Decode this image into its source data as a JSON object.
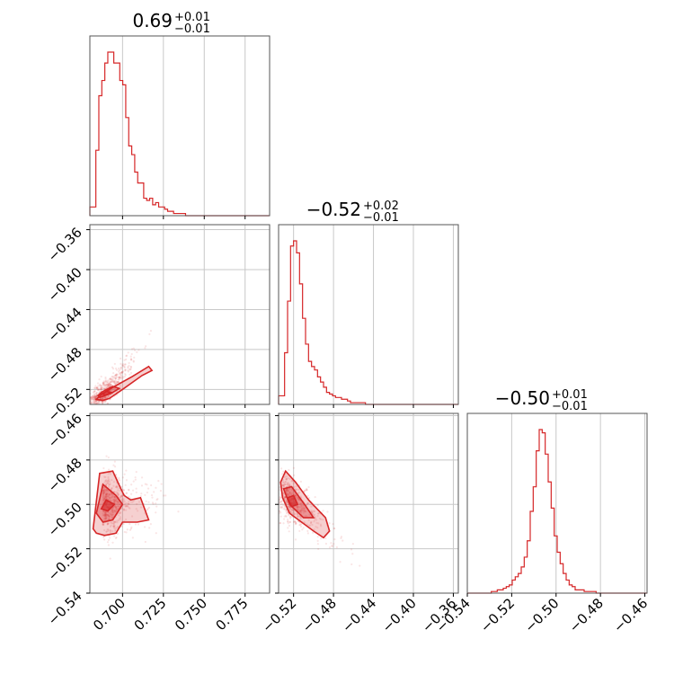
{
  "chart_data": {
    "type": "corner",
    "color": "#d62728",
    "parameters": [
      {
        "title_value": "0.69",
        "title_plus": "+0.01",
        "title_minus": "−0.01",
        "range": [
          0.68,
          0.79
        ],
        "ticks": [
          "0.700",
          "0.725",
          "0.750",
          "0.775"
        ],
        "tick_values": [
          0.7,
          0.725,
          0.75,
          0.775
        ]
      },
      {
        "title_value": "−0.52",
        "title_plus": "+0.02",
        "title_minus": "−0.01",
        "range": [
          -0.535,
          -0.355
        ],
        "ticks": [
          "−0.52",
          "−0.48",
          "−0.44",
          "−0.40",
          "−0.36"
        ],
        "tick_values": [
          -0.52,
          -0.48,
          -0.44,
          -0.4,
          -0.36
        ]
      },
      {
        "title_value": "−0.50",
        "title_plus": "+0.01",
        "title_minus": "−0.01",
        "range": [
          -0.54,
          -0.459
        ],
        "ticks": [
          "−0.54",
          "−0.52",
          "−0.50",
          "−0.48",
          "−0.46"
        ],
        "tick_values": [
          -0.54,
          -0.52,
          -0.5,
          -0.48,
          -0.46
        ]
      }
    ],
    "histograms": [
      {
        "parameter": 0,
        "bin_start": 0.68,
        "bin_width": 0.00183,
        "counts": [
          4,
          4,
          30,
          55,
          62,
          70,
          75,
          75,
          70,
          70,
          62,
          60,
          45,
          32,
          28,
          20,
          15,
          15,
          8,
          7,
          8,
          5,
          6,
          4,
          4,
          3,
          2,
          2,
          1,
          1,
          1,
          1,
          0,
          0,
          0,
          0,
          0,
          0,
          0,
          0,
          0,
          0,
          0,
          0,
          0,
          0,
          0,
          0,
          0,
          0,
          0,
          0,
          0,
          0,
          0,
          0,
          0,
          0,
          0,
          0
        ]
      },
      {
        "parameter": 1,
        "bin_start": -0.535,
        "bin_width": 0.003,
        "counts": [
          5,
          5,
          30,
          60,
          92,
          95,
          88,
          70,
          50,
          35,
          25,
          22,
          20,
          16,
          13,
          10,
          7,
          6,
          5,
          4,
          4,
          3,
          3,
          2,
          1,
          1,
          1,
          1,
          1,
          0,
          0,
          0,
          0,
          0,
          0,
          0,
          0,
          0,
          0,
          0,
          0,
          0,
          0,
          0,
          0,
          0,
          0,
          0,
          0,
          0,
          0,
          0,
          0,
          0,
          0,
          0,
          0,
          0,
          0,
          0
        ]
      },
      {
        "parameter": 2,
        "bin_start": -0.54,
        "bin_width": 0.00135,
        "counts": [
          0,
          0,
          0,
          0,
          0,
          0,
          0,
          0,
          1,
          1,
          2,
          2,
          3,
          4,
          5,
          8,
          10,
          12,
          16,
          22,
          32,
          50,
          65,
          87,
          100,
          98,
          85,
          68,
          52,
          35,
          25,
          18,
          12,
          8,
          5,
          4,
          2,
          2,
          2,
          1,
          1,
          1,
          1,
          0,
          0,
          0,
          0,
          0,
          0,
          0,
          0,
          0,
          0,
          0,
          0,
          0,
          0,
          0,
          0,
          0
        ]
      }
    ],
    "pairs": [
      {
        "x_parameter": 0,
        "y_parameter": 1,
        "trend": "positive correlation",
        "center": [
          0.69,
          -0.523
        ]
      },
      {
        "x_parameter": 0,
        "y_parameter": 2,
        "trend": "no correlation",
        "center": [
          0.688,
          -0.5
        ]
      },
      {
        "x_parameter": 1,
        "y_parameter": 2,
        "trend": "negative correlation",
        "center": [
          -0.52,
          -0.5
        ]
      }
    ],
    "grid": true
  }
}
